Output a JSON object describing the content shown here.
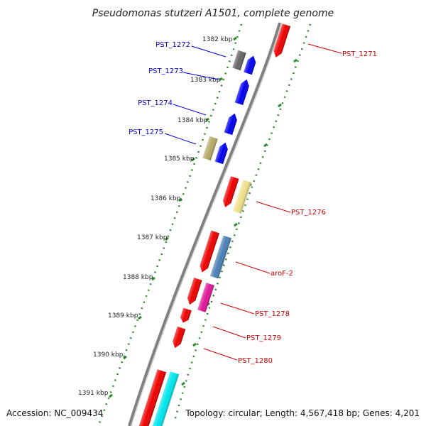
{
  "title": "Pseudomonas stutzeri A1501, complete genome",
  "footer": {
    "accession": "Accession: NC_009434",
    "summary": "Topology: circular; Length: 4,567,418 bp; Genes: 4,201"
  },
  "colors": {
    "backbone": "#808080",
    "tick_green": "#2e8b2e",
    "forward_label": "#cc0000",
    "reverse_label": "#0000cc"
  },
  "kbp_ticks": [
    {
      "label": "1382 kbp"
    },
    {
      "label": "1383 kbp"
    },
    {
      "label": "1384 kbp"
    },
    {
      "label": "1385 kbp"
    },
    {
      "label": "1386 kbp"
    },
    {
      "label": "1387 kbp"
    },
    {
      "label": "1388 kbp"
    },
    {
      "label": "1389 kbp"
    },
    {
      "label": "1390 kbp"
    },
    {
      "label": "1391 kbp"
    }
  ],
  "reverse_genes": [
    {
      "label": "PST_1272",
      "color": "#0000ee"
    },
    {
      "label": "PST_1273",
      "color": "#0000ee"
    },
    {
      "label": "PST_1274",
      "color": "#0000ee"
    },
    {
      "label": "PST_1275",
      "color": "#0000ee"
    }
  ],
  "forward_genes": [
    {
      "label": "PST_1271",
      "color": "#ee0000"
    },
    {
      "label": "PST_1276",
      "color": "#ee0000"
    },
    {
      "label": "aroF-2",
      "color": "#ee0000"
    },
    {
      "label": "PST_1278",
      "color": "#ee0000"
    },
    {
      "label": "PST_1279",
      "color": "#ee0000"
    },
    {
      "label": "PST_1280",
      "color": "#ee0000"
    }
  ],
  "feature_colors": {
    "gray": "#666666",
    "olive": "#b5aa66",
    "yellow": "#eee08a",
    "steelblue": "#4a7fb5",
    "magenta": "#e0179a",
    "cyan": "#00e5ee"
  }
}
